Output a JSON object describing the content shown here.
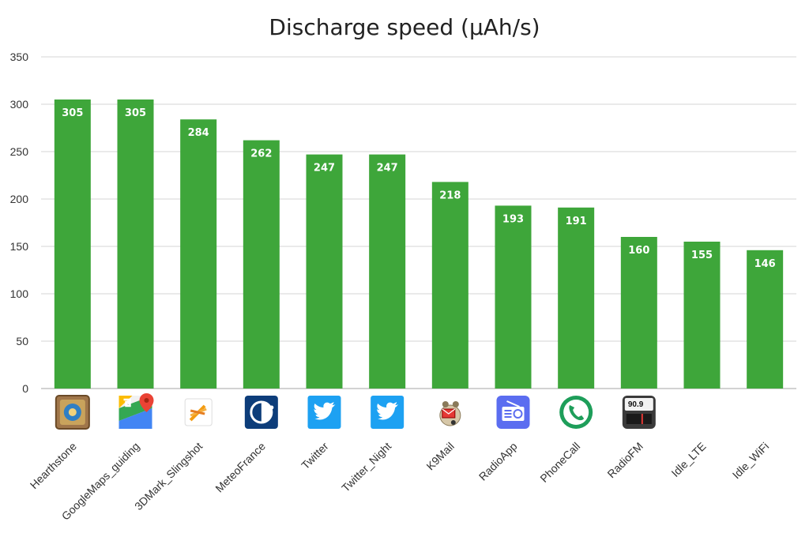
{
  "chart_data": {
    "type": "bar",
    "title": "Discharge speed (µAh/s)",
    "xlabel": "",
    "ylabel": "",
    "ylim": [
      0,
      350
    ],
    "yticks": [
      0,
      50,
      100,
      150,
      200,
      250,
      300,
      350
    ],
    "grid": true,
    "bar_color": "#3ea63a",
    "categories": [
      "Hearthstone",
      "GoogleMaps_guiding",
      "3DMark_Slingshot",
      "MeteoFrance",
      "Twitter",
      "Twitter_Night",
      "K9Mail",
      "RadioApp",
      "PhoneCall",
      "RadioFM",
      "Idle_LTE",
      "Idle_WiFi"
    ],
    "values": [
      305,
      305,
      284,
      262,
      247,
      247,
      218,
      193,
      191,
      160,
      155,
      146
    ],
    "icons": [
      "hearthstone-icon",
      "google-maps-icon",
      "3dmark-icon",
      "meteofrance-icon",
      "twitter-icon",
      "twitter-icon",
      "k9mail-icon",
      "radio-app-icon",
      "phone-icon",
      "radio-fm-icon",
      "",
      ""
    ],
    "icon_texts": {
      "radio_fm": "90.9"
    }
  }
}
